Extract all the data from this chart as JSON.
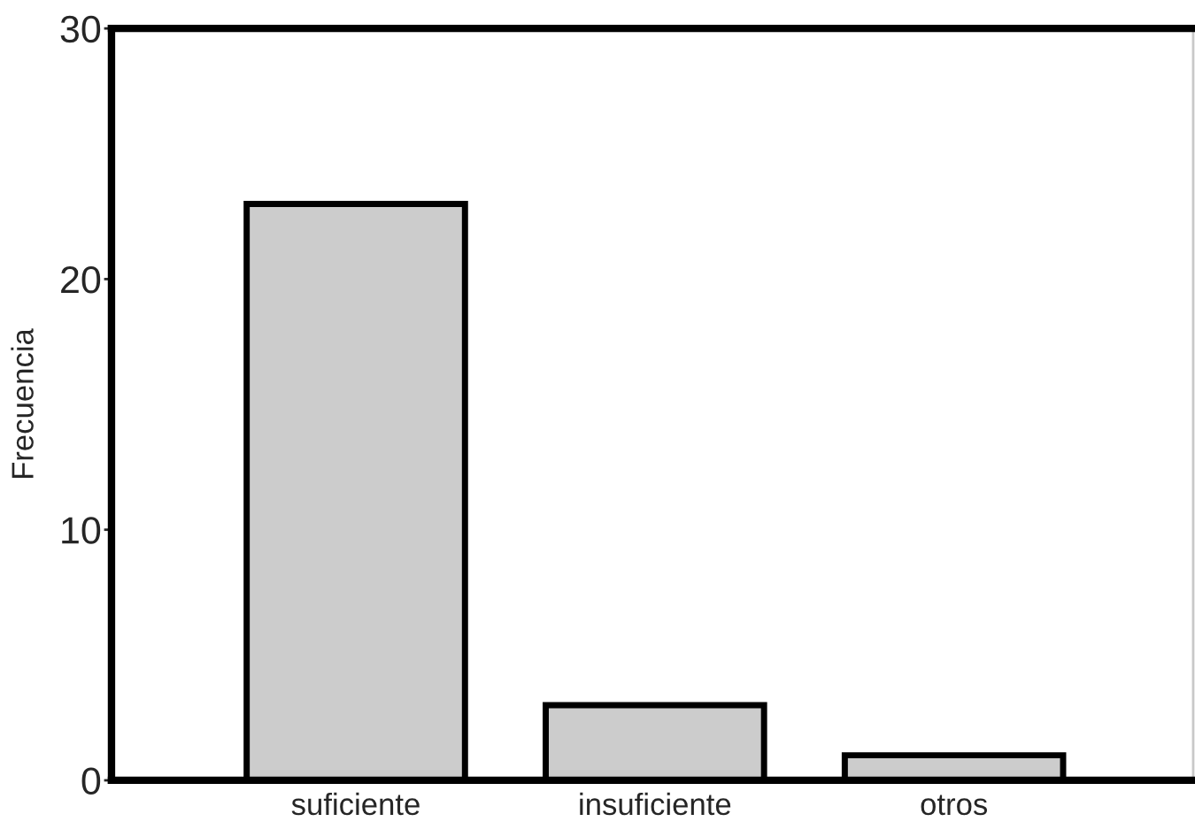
{
  "chart_data": {
    "type": "bar",
    "ylabel": "Frecuencia",
    "categories": [
      "suficiente",
      "insuficiente",
      "otros"
    ],
    "values": [
      23,
      3,
      1
    ],
    "color": "#cccccc",
    "ylim": [
      0,
      30
    ],
    "yticks": [
      0,
      10,
      20,
      30
    ]
  }
}
